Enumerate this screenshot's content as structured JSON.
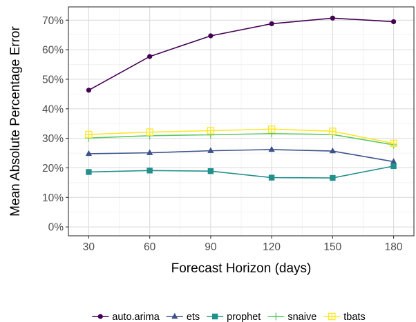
{
  "chart_data": {
    "type": "line",
    "title": "",
    "xlabel": "Forecast Horizon (days)",
    "ylabel": "Mean Absolute Percentage Error",
    "x": [
      30,
      60,
      90,
      120,
      150,
      180
    ],
    "x_ticks": [
      "30",
      "60",
      "90",
      "120",
      "150",
      "180"
    ],
    "xlim": [
      20,
      190
    ],
    "ylim": [
      -0.03,
      0.745
    ],
    "y_ticks": [
      0,
      0.1,
      0.2,
      0.3,
      0.4,
      0.5,
      0.6,
      0.7
    ],
    "y_tick_labels": [
      "0%",
      "10%",
      "20%",
      "30%",
      "40%",
      "50%",
      "60%",
      "70%"
    ],
    "grid": true,
    "legend_position": "bottom",
    "series": [
      {
        "name": "auto.arima",
        "color": "#440154",
        "marker": "circle",
        "values": [
          0.463,
          0.577,
          0.647,
          0.688,
          0.707,
          0.695
        ]
      },
      {
        "name": "ets",
        "color": "#3b528b",
        "marker": "triangle",
        "values": [
          0.248,
          0.251,
          0.258,
          0.262,
          0.257,
          0.221
        ]
      },
      {
        "name": "prophet",
        "color": "#21908c",
        "marker": "square",
        "values": [
          0.186,
          0.191,
          0.189,
          0.167,
          0.166,
          0.206
        ]
      },
      {
        "name": "snaive",
        "color": "#5dc863",
        "marker": "plus",
        "values": [
          0.301,
          0.309,
          0.312,
          0.316,
          0.313,
          0.278
        ]
      },
      {
        "name": "tbats",
        "color": "#fde725",
        "marker": "square-cross",
        "values": [
          0.313,
          0.321,
          0.326,
          0.331,
          0.324,
          0.283
        ]
      }
    ]
  }
}
